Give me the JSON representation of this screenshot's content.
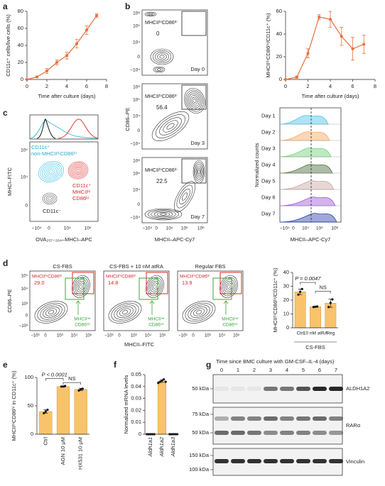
{
  "panel_labels": [
    "a",
    "b",
    "c",
    "d",
    "e",
    "f",
    "g"
  ],
  "chart_data": [
    {
      "type": "line",
      "x": [
        0,
        1,
        2,
        3,
        4,
        5,
        6,
        7
      ],
      "values": [
        0,
        3,
        10,
        20,
        28,
        42,
        58,
        75
      ],
      "errors": [
        0,
        1,
        3,
        3,
        4,
        5,
        5,
        2
      ],
      "color": "#e8703a",
      "xlim": [
        0,
        8
      ],
      "ylim": [
        0,
        80
      ],
      "xticks": [
        0,
        2,
        4,
        6,
        8
      ],
      "yticks": [
        0,
        20,
        40,
        60,
        80
      ],
      "x_label": "Time after culture (days)",
      "y_label": "CD11c⁺ cells/live cells (%)"
    },
    {
      "type": "line",
      "x": [
        0,
        1,
        2,
        3,
        4,
        5,
        6,
        7
      ],
      "values": [
        0,
        2,
        23,
        55,
        53,
        38,
        27,
        31
      ],
      "errors": [
        0,
        1,
        4,
        2,
        7,
        8,
        10,
        8
      ],
      "color": "#e8703a",
      "xlim": [
        0,
        8
      ],
      "ylim": [
        0,
        60
      ],
      "xticks": [
        0,
        2,
        4,
        6,
        8
      ],
      "yticks": [
        0,
        20,
        40,
        60
      ],
      "x_label": "Time after culture (days)",
      "y_label": "MHCIIʰⁱCD86ʰⁱ/CD11c⁺ (%)"
    },
    {
      "type": "bar",
      "categories": [
        "Ctrl",
        "10 nM atRA",
        "Reg"
      ],
      "values": [
        26,
        15.2,
        17.8
      ],
      "errors": [
        2,
        0.3,
        3
      ],
      "points": [
        [
          24,
          26,
          28
        ],
        [
          15,
          15.2,
          15.4
        ],
        [
          15,
          18,
          20.5
        ]
      ],
      "color": "#f9c36b",
      "ylim": [
        0,
        40
      ],
      "yticks": [
        0,
        10,
        20,
        30,
        40
      ],
      "y_label": "MHCIIʰⁱCD86ʰⁱ/CD11c⁺ (%)",
      "annotations": [
        "P = 0.0047",
        "NS"
      ],
      "group_label": "CS-FBS"
    },
    {
      "type": "bar",
      "categories": [
        "Ctrl",
        "AGN 10 μM",
        "HX531 10 μM"
      ],
      "values": [
        40,
        84,
        79
      ],
      "errors": [
        3,
        1,
        2
      ],
      "points": [
        [
          37,
          40,
          43
        ],
        [
          84,
          84,
          85
        ],
        [
          77,
          79,
          80
        ]
      ],
      "color": "#f9c36b",
      "ylim": [
        0,
        100
      ],
      "yticks": [
        0,
        50,
        100
      ],
      "y_label": "MHCIIʰⁱCD86ʰⁱ in CD11c⁺ (%)",
      "annotations": [
        "P < 0.0001",
        "NS"
      ]
    },
    {
      "type": "bar",
      "categories": [
        "Aldh1a1",
        "Aldh1a2",
        "Aldh1a3"
      ],
      "values": [
        0,
        0.0445,
        0
      ],
      "errors": [
        0,
        0.001,
        0
      ],
      "points": [
        [
          0,
          0,
          0,
          0,
          0
        ],
        [
          0.043,
          0.044,
          0.045,
          0.046,
          0.044
        ],
        [
          0,
          0,
          0,
          0,
          0
        ]
      ],
      "color": "#f9c36b",
      "ylim": [
        0,
        0.05
      ],
      "yticks": [
        0,
        0.01,
        0.02,
        0.03,
        0.04,
        0.05
      ],
      "y_label": "Normalized mRNA levels"
    }
  ],
  "flow_b": {
    "y_label": "CD86–PE",
    "x_label": "MHCII–APC-Cy7",
    "y_ticks": [
      "10⁶",
      "10⁵",
      "10⁴",
      "0",
      "−10⁴"
    ],
    "x_ticks": [
      "−10⁴",
      "0",
      "10⁴",
      "10⁵",
      "10⁶"
    ],
    "plots": [
      {
        "gate": "MHCIIʰⁱCD86ʰⁱ",
        "value": "0",
        "day": "Day 0"
      },
      {
        "gate": "MHCIIʰⁱCD86ʰⁱ",
        "value": "56.4",
        "day": "Day 3"
      },
      {
        "gate": "MHCIIʰⁱCD86ʰⁱ",
        "value": "22.5",
        "day": "Day 7"
      }
    ]
  },
  "histogram_b": {
    "days": [
      "Day 1",
      "Day 2",
      "Day 3",
      "Day 4",
      "Day 5",
      "Day 6",
      "Day 7"
    ],
    "y_label": "Normalized counts",
    "x_label": "MHCII–APC-Cy7",
    "x_ticks": [
      "−10⁴",
      "0",
      "10⁴",
      "10⁵",
      "10⁶"
    ]
  },
  "flow_c": {
    "y_label": "MHCI–FITC",
    "x_label": "OVA₂₅₇₋₂₆₄–MHCI–APC",
    "y_ticks": [
      "10⁵",
      "10⁴",
      "0"
    ],
    "x_ticks": [
      "−10⁴",
      "0",
      "10⁴",
      "10⁵"
    ],
    "blue_label": [
      "CD11c⁺",
      "non-MHCIIʰⁱCD86ʰⁱ"
    ],
    "red_label": [
      "CD11c⁺",
      "MHCIIʰⁱ",
      "CD86ʰⁱ"
    ],
    "black_label": "CD11c⁻"
  },
  "flow_d": {
    "y_label": "CD86–PE",
    "x_label": "MHCII–FITC",
    "y_ticks": [
      "10⁵",
      "10⁴",
      "10³",
      "0",
      "−10³"
    ],
    "x_ticks": [
      "−10³",
      "0",
      "10³",
      "10⁴",
      "10⁵"
    ],
    "plots": [
      {
        "title": "CS-FBS",
        "gate": "MHCIIʰⁱCD86ʰⁱ",
        "value": "29.0"
      },
      {
        "title": "CS-FBS + 10 nM atRA",
        "gate": "MHCIIʰⁱCD86ʰⁱ",
        "value": "14.8"
      },
      {
        "title": "Regular FBS",
        "gate": "MHCIIʰⁱCD86ʰⁱ",
        "value": "13.9"
      }
    ],
    "int_label": [
      "MHCIIⁱⁿᵗ",
      "CD86ⁱⁿᵗ"
    ]
  },
  "blot_g": {
    "title": "Time since BMC culture with GM-CSF–IL-4 (days)",
    "lanes": [
      "0",
      "1",
      "2",
      "3",
      "4",
      "5",
      "6",
      "7"
    ],
    "blots": [
      {
        "name": "ALDH1A2",
        "markers": [
          "50 kDa"
        ]
      },
      {
        "name": "RARα",
        "markers": [
          "75 kDa",
          "50 kDa"
        ]
      },
      {
        "name": "Vinculin",
        "markers": [
          "150 kDa",
          "100 kDa"
        ]
      }
    ]
  }
}
